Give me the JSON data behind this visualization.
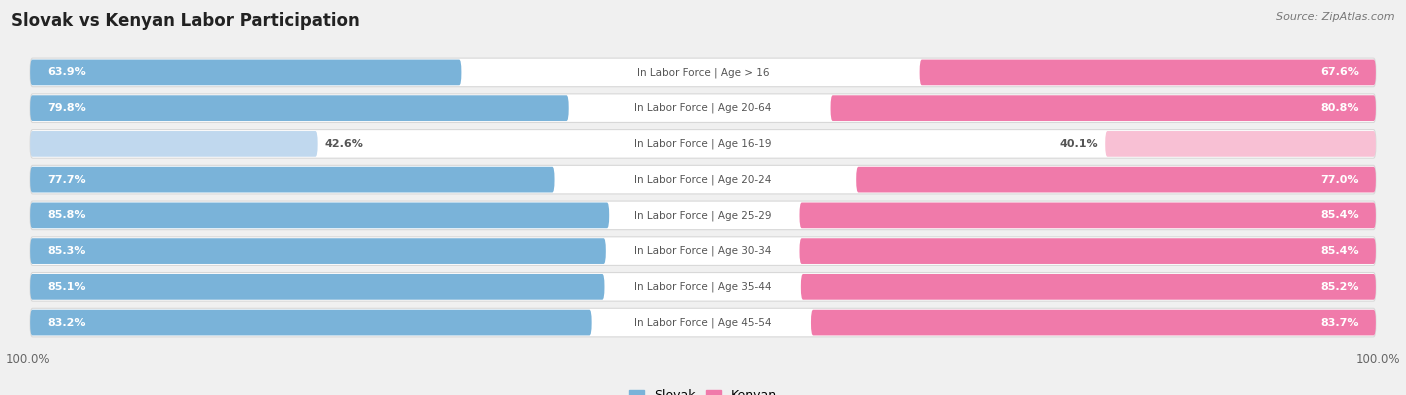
{
  "title": "Slovak vs Kenyan Labor Participation",
  "source": "Source: ZipAtlas.com",
  "categories": [
    "In Labor Force | Age > 16",
    "In Labor Force | Age 20-64",
    "In Labor Force | Age 16-19",
    "In Labor Force | Age 20-24",
    "In Labor Force | Age 25-29",
    "In Labor Force | Age 30-34",
    "In Labor Force | Age 35-44",
    "In Labor Force | Age 45-54"
  ],
  "slovak_values": [
    63.9,
    79.8,
    42.6,
    77.7,
    85.8,
    85.3,
    85.1,
    83.2
  ],
  "kenyan_values": [
    67.6,
    80.8,
    40.1,
    77.0,
    85.4,
    85.4,
    85.2,
    83.7
  ],
  "slovak_color_dark": "#7ab3d9",
  "slovak_color_light": "#c0d8ee",
  "kenyan_color_dark": "#f07aaa",
  "kenyan_color_light": "#f8c0d4",
  "label_color_white": "#ffffff",
  "label_color_dark": "#555555",
  "center_label_color": "#555555",
  "bg_color": "#f0f0f0",
  "row_bg_color": "#ffffff",
  "row_border_color": "#d8d8d8",
  "max_value": 100.0,
  "legend_slovak": "Slovak",
  "legend_kenyan": "Kenyan",
  "light_rows": [
    2
  ]
}
